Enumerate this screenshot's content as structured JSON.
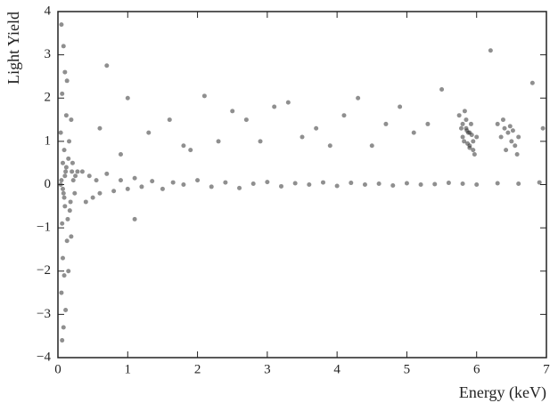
{
  "chart_data": {
    "type": "scatter",
    "x_label": "Energy (keV)",
    "y_label": "Light Yield",
    "xlim": [
      0,
      7
    ],
    "xticks": [
      0,
      1,
      2,
      3,
      4,
      5,
      6,
      7
    ],
    "ylim": [
      -4,
      4
    ],
    "yticks": [
      {
        "value": -4,
        "label": "−4"
      },
      {
        "value": -3,
        "label": "−3"
      },
      {
        "value": -2,
        "label": "−2"
      },
      {
        "value": -1,
        "label": "−1"
      },
      0,
      1,
      2,
      3,
      4
    ],
    "grid": false,
    "series": [
      {
        "color": "#333333",
        "x": [
          0.05,
          0.08,
          0.1,
          0.06,
          0.12,
          0.04,
          0.09,
          0.07,
          0.11,
          0.05,
          0.08,
          0.1,
          0.06,
          0.13,
          0.07,
          0.09,
          0.05,
          0.11,
          0.08,
          0.06,
          0.1,
          0.07,
          0.12,
          0.09,
          0.04,
          0.15,
          0.18,
          0.2,
          0.14,
          0.22,
          0.16,
          0.19,
          0.25,
          0.13,
          0.17,
          0.21,
          0.24,
          0.28,
          0.15,
          0.19,
          0.35,
          0.4,
          0.45,
          0.5,
          0.55,
          0.6,
          0.7,
          0.8,
          0.9,
          1.0,
          1.1,
          1.2,
          1.35,
          1.5,
          1.65,
          1.8,
          2.0,
          2.2,
          2.4,
          2.6,
          2.8,
          3.0,
          3.2,
          3.4,
          3.6,
          3.8,
          4.0,
          4.2,
          4.4,
          4.6,
          4.8,
          5.0,
          5.2,
          5.4,
          5.6,
          5.8,
          6.0,
          6.3,
          6.6,
          6.9,
          0.7,
          1.0,
          1.3,
          1.6,
          2.1,
          2.5,
          2.9,
          3.3,
          3.7,
          4.1,
          4.5,
          4.9,
          5.3,
          5.5,
          6.8,
          0.9,
          1.9,
          2.7,
          3.5,
          4.3,
          5.1,
          6.95,
          1.1,
          2.3,
          3.1,
          3.9,
          4.7,
          6.2,
          0.6,
          1.8,
          5.75,
          5.8,
          5.85,
          5.9,
          5.95,
          5.8,
          5.85,
          5.9,
          5.95,
          6.0,
          5.78,
          5.82,
          5.88,
          5.92,
          5.97,
          5.83,
          5.87,
          5.93,
          5.86,
          5.9,
          6.3,
          6.35,
          6.4,
          6.45,
          6.5,
          6.55,
          6.6,
          6.38,
          6.42,
          6.48,
          6.52,
          6.58
        ],
        "values": [
          3.7,
          3.2,
          2.6,
          2.1,
          1.6,
          1.2,
          0.8,
          0.5,
          0.3,
          0.1,
          -0.2,
          -0.5,
          -0.9,
          -1.3,
          -1.7,
          -2.1,
          -2.5,
          -2.9,
          -3.3,
          -3.6,
          0.2,
          -0.1,
          0.4,
          -0.3,
          0.0,
          0.6,
          -0.4,
          0.3,
          -0.8,
          0.1,
          1.0,
          -1.2,
          0.2,
          2.4,
          -0.6,
          0.5,
          -0.2,
          0.3,
          -2.0,
          1.5,
          0.3,
          -0.4,
          0.2,
          -0.3,
          0.1,
          -0.2,
          0.25,
          -0.15,
          0.1,
          -0.1,
          0.15,
          -0.05,
          0.08,
          -0.1,
          0.05,
          0.0,
          0.1,
          -0.05,
          0.05,
          -0.08,
          0.02,
          0.06,
          -0.04,
          0.03,
          0.0,
          0.05,
          -0.03,
          0.04,
          0.0,
          0.02,
          -0.02,
          0.03,
          0.0,
          0.01,
          0.04,
          0.02,
          0.0,
          0.03,
          0.02,
          0.05,
          2.75,
          2.0,
          1.2,
          1.5,
          2.05,
          1.7,
          1.0,
          1.9,
          1.3,
          1.6,
          0.9,
          1.8,
          1.4,
          2.2,
          2.35,
          0.7,
          0.8,
          1.5,
          1.1,
          2.0,
          1.2,
          1.3,
          -0.8,
          1.0,
          1.8,
          0.9,
          1.4,
          3.1,
          1.3,
          0.9,
          1.6,
          1.4,
          1.3,
          1.2,
          1.0,
          1.1,
          1.5,
          0.9,
          0.8,
          1.1,
          1.3,
          1.0,
          1.2,
          1.4,
          0.7,
          1.7,
          0.95,
          1.15,
          1.25,
          0.85,
          1.4,
          1.1,
          1.3,
          1.2,
          1.0,
          0.9,
          1.1,
          1.5,
          0.8,
          1.35,
          1.25,
          0.7
        ]
      }
    ]
  }
}
